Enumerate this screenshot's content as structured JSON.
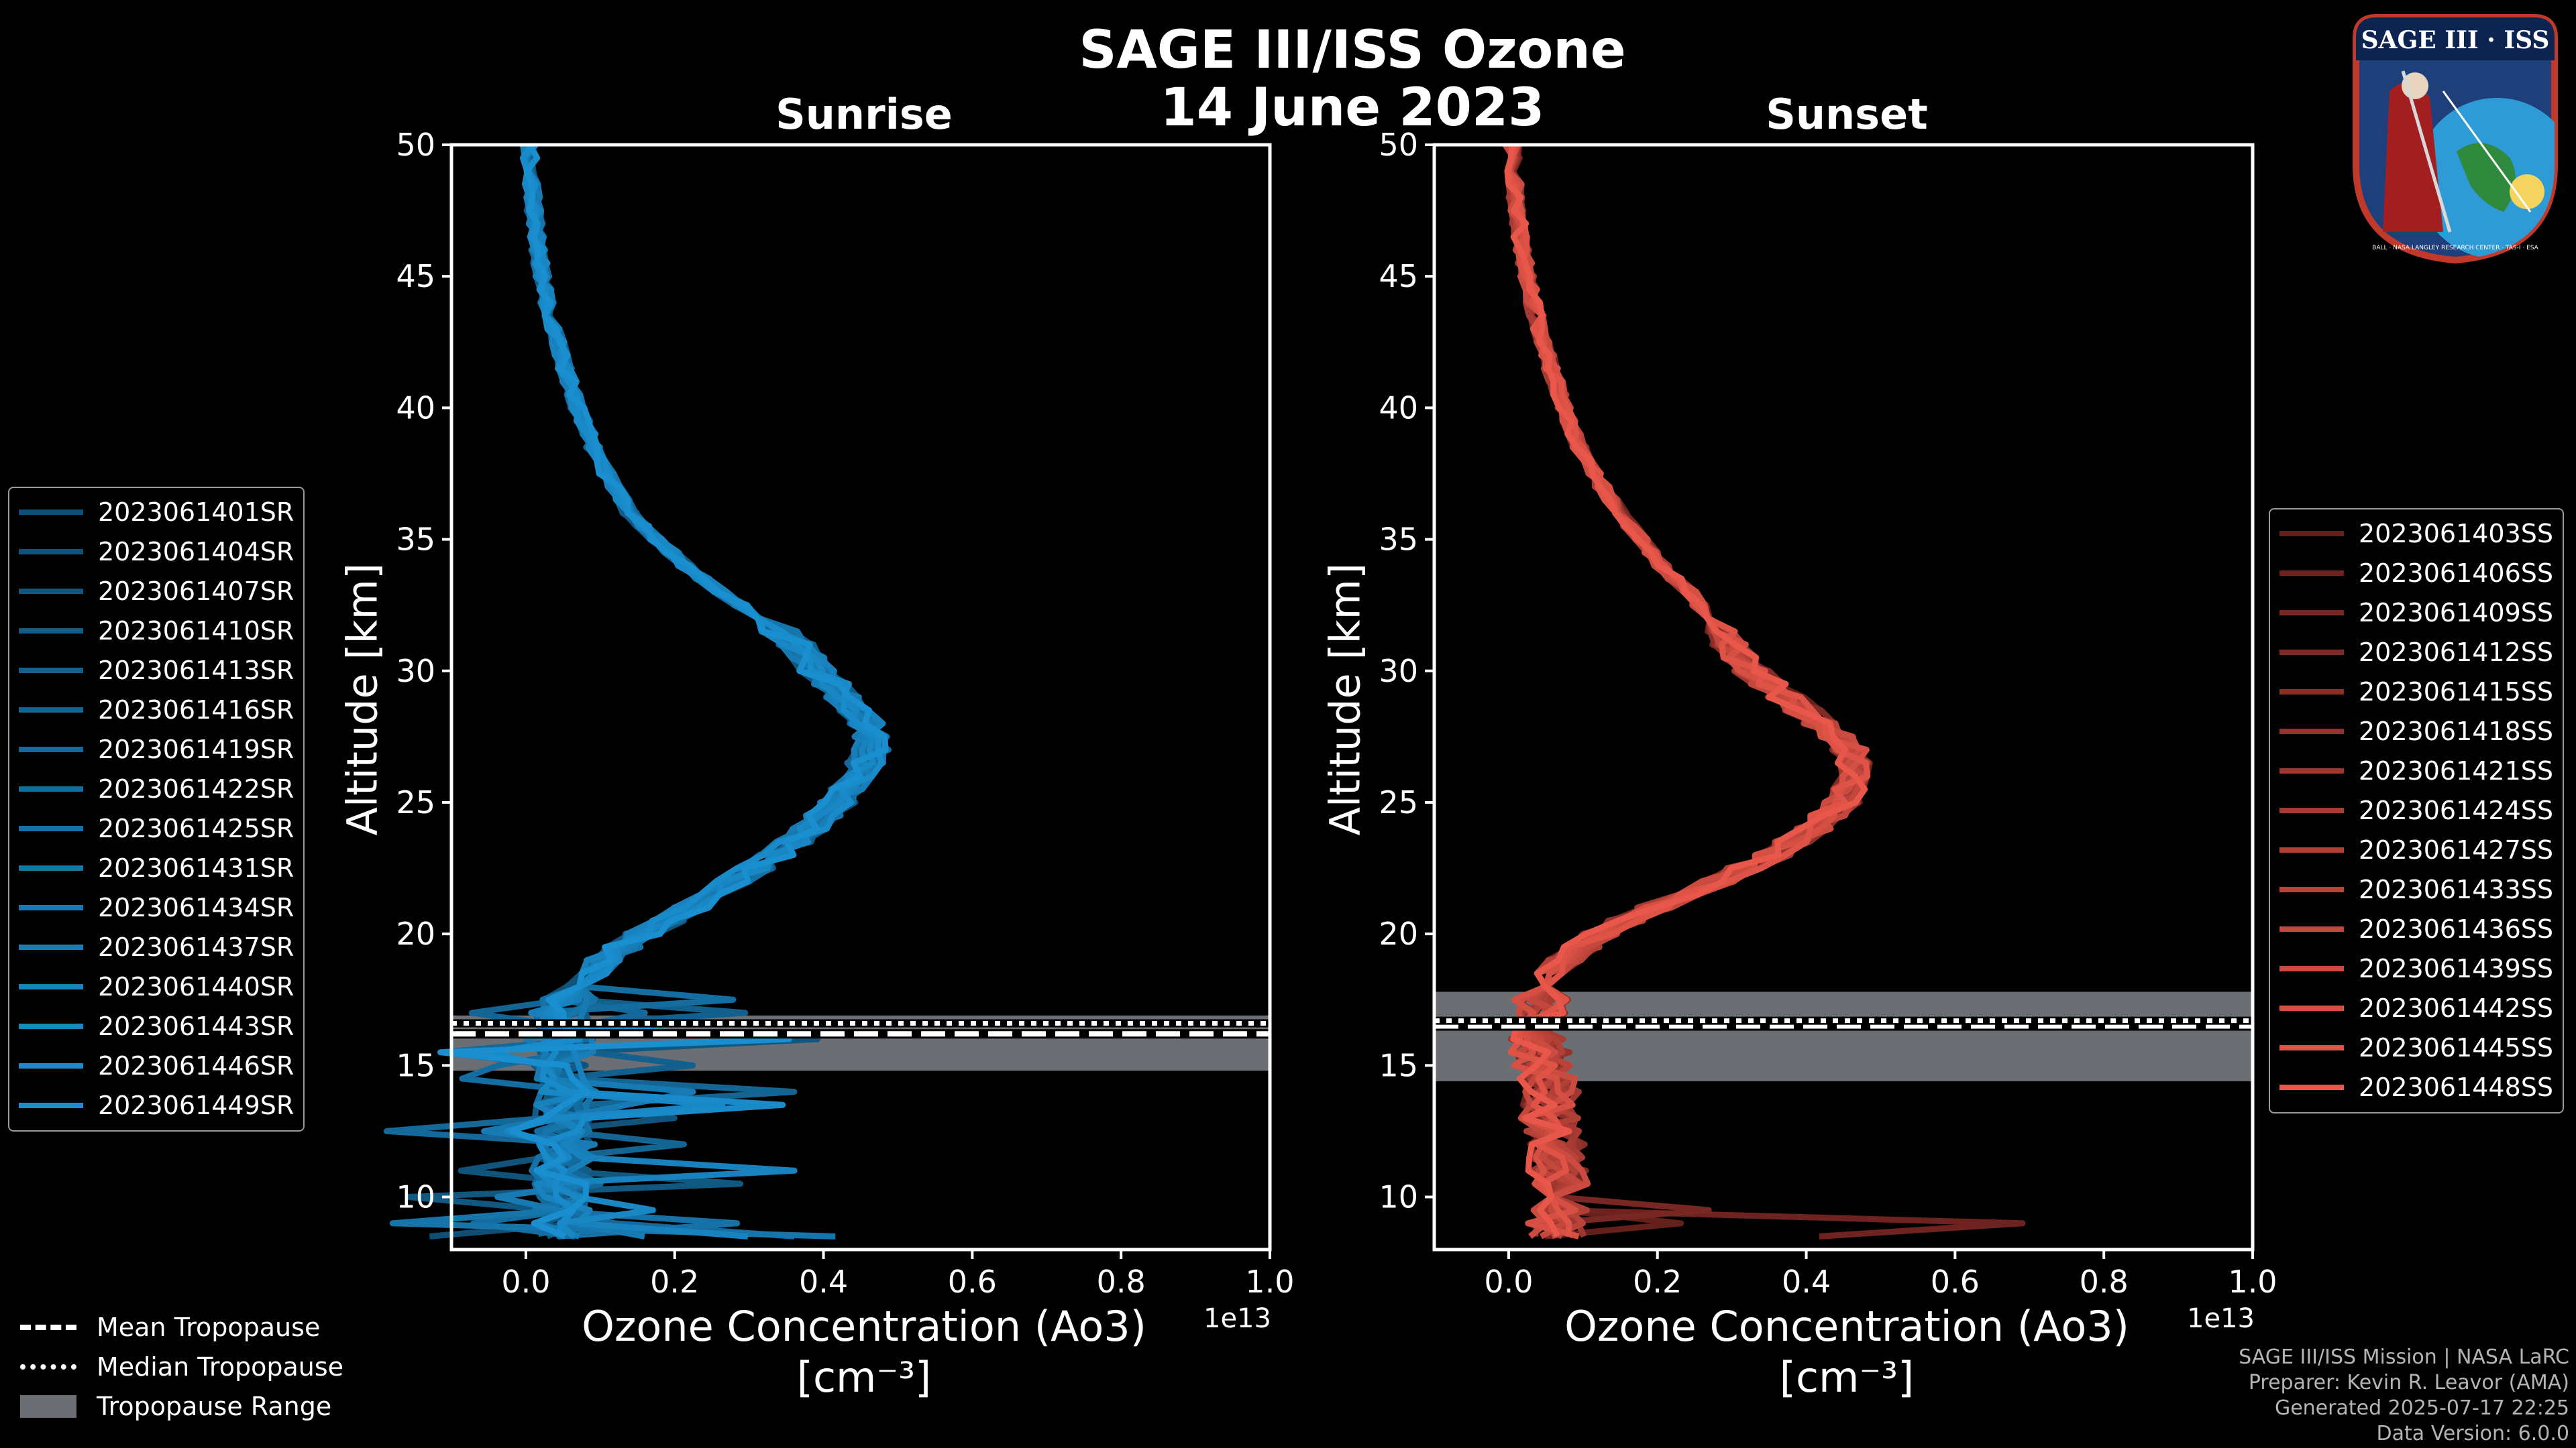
{
  "title": {
    "line1": "SAGE III/ISS Ozone",
    "line2": "14 June 2023"
  },
  "colors": {
    "sunrise": "#1a8fd0",
    "sunset": "#e8574a",
    "tropo_range": "#6b6e73"
  },
  "badge": {
    "title": "SAGE III · ISS",
    "ring": "BALL · NASA LANGLEY RESEARCH CENTER · TAS-I · ESA"
  },
  "tropopause_legend": {
    "mean": "Mean Tropopause",
    "median": "Median Tropopause",
    "range": "Tropopause Range"
  },
  "credits": [
    "SAGE III/ISS Mission | NASA LaRC",
    "Preparer: Kevin R. Leavor (AMA)",
    "Generated 2025-07-17 22:25",
    "Data Version: 6.0.0"
  ],
  "chart_data": [
    {
      "type": "line",
      "title": "Sunrise",
      "xlabel": "Ozone Concentration (Ao3)",
      "xunits": "[cm⁻³]",
      "ylabel": "Altitude [km]",
      "xlim": [
        -0.1,
        1.0
      ],
      "ylim": [
        8,
        50
      ],
      "x_multiplier": "1e13",
      "xticks": [
        "0.0",
        "0.2",
        "0.4",
        "0.6",
        "0.8",
        "1.0"
      ],
      "yticks": [
        "10",
        "15",
        "20",
        "25",
        "30",
        "35",
        "40",
        "45",
        "50"
      ],
      "tropopause": {
        "mean": 16.2,
        "median": 16.6,
        "range": [
          14.8,
          16.9
        ]
      },
      "series_names": [
        "2023061401SR",
        "2023061404SR",
        "2023061407SR",
        "2023061410SR",
        "2023061413SR",
        "2023061416SR",
        "2023061419SR",
        "2023061422SR",
        "2023061425SR",
        "2023061431SR",
        "2023061434SR",
        "2023061437SR",
        "2023061440SR",
        "2023061443SR",
        "2023061446SR",
        "2023061449SR"
      ],
      "representative_profile": {
        "altitude": [
          50,
          48,
          46,
          44,
          42,
          40,
          38,
          36,
          34,
          33,
          32,
          31,
          30,
          29,
          28,
          27,
          26,
          25,
          24,
          23,
          22,
          21,
          20,
          19,
          18,
          17,
          16,
          15,
          14,
          13,
          12,
          11,
          10,
          9,
          8.2
        ],
        "value": [
          0.005,
          0.01,
          0.018,
          0.03,
          0.05,
          0.075,
          0.105,
          0.15,
          0.23,
          0.28,
          0.34,
          0.39,
          0.42,
          0.46,
          0.49,
          0.5,
          0.48,
          0.45,
          0.41,
          0.36,
          0.3,
          0.24,
          0.17,
          0.11,
          0.07,
          0.05,
          0.06,
          0.05,
          0.06,
          0.05,
          0.06,
          0.05,
          0.06,
          0.05,
          0.06
        ]
      }
    },
    {
      "type": "line",
      "title": "Sunset",
      "xlabel": "Ozone Concentration (Ao3)",
      "xunits": "[cm⁻³]",
      "ylabel": "Altitude [km]",
      "xlim": [
        -0.1,
        1.0
      ],
      "ylim": [
        8,
        50
      ],
      "x_multiplier": "1e13",
      "xticks": [
        "0.0",
        "0.2",
        "0.4",
        "0.6",
        "0.8",
        "1.0"
      ],
      "yticks": [
        "10",
        "15",
        "20",
        "25",
        "30",
        "35",
        "40",
        "45",
        "50"
      ],
      "tropopause": {
        "mean": 16.5,
        "median": 16.7,
        "range": [
          14.4,
          17.8
        ]
      },
      "series_names": [
        "2023061403SS",
        "2023061406SS",
        "2023061409SS",
        "2023061412SS",
        "2023061415SS",
        "2023061418SS",
        "2023061421SS",
        "2023061424SS",
        "2023061427SS",
        "2023061433SS",
        "2023061436SS",
        "2023061439SS",
        "2023061442SS",
        "2023061445SS",
        "2023061448SS"
      ],
      "representative_profile": {
        "altitude": [
          50,
          48,
          46,
          44,
          42,
          40,
          38,
          36,
          34,
          33,
          32,
          31,
          30,
          29,
          28,
          27,
          26,
          25,
          24,
          23,
          22,
          21,
          20,
          19,
          18,
          17,
          16,
          15,
          14,
          13,
          12,
          11,
          10,
          9,
          8.2
        ],
        "value": [
          0.005,
          0.01,
          0.02,
          0.035,
          0.055,
          0.08,
          0.11,
          0.16,
          0.22,
          0.26,
          0.29,
          0.32,
          0.35,
          0.4,
          0.45,
          0.49,
          0.5,
          0.48,
          0.44,
          0.38,
          0.3,
          0.21,
          0.13,
          0.08,
          0.05,
          0.04,
          0.04,
          0.05,
          0.06,
          0.06,
          0.07,
          0.07,
          0.08,
          0.07,
          0.07
        ]
      }
    }
  ]
}
